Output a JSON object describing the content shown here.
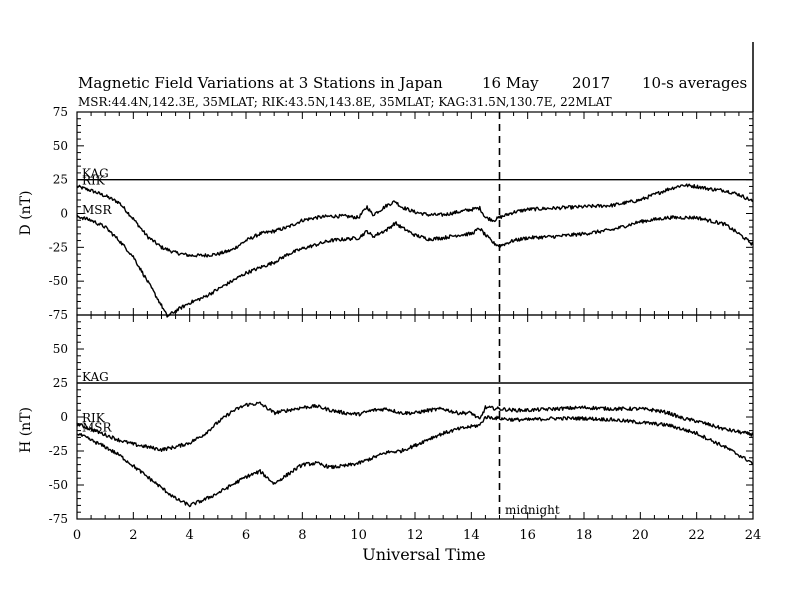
{
  "title": "Magnetic Field Variations at 3 Stations in Japan",
  "date": "16 May",
  "year": "2017",
  "averaging": "10-s averages",
  "stations_line": "MSR:44.4N,142.3E, 35MLAT;  RIK:43.5N,143.8E, 35MLAT;  KAG:31.5N,130.7E, 22MLAT",
  "chart_data": [
    {
      "type": "line",
      "ylabel": "D (nT)",
      "ylim": [
        -75,
        75
      ],
      "yticks": [
        "75",
        "50",
        "25",
        "0",
        "-25",
        "-50",
        "-75"
      ],
      "xlim": [
        0,
        24
      ],
      "series": [
        {
          "name": "KAG",
          "x": [
            0,
            24
          ],
          "y": [
            25,
            25
          ]
        },
        {
          "name": "RIK",
          "x": [
            0,
            0.5,
            1,
            1.5,
            2,
            2.5,
            3,
            3.5,
            4,
            4.5,
            5,
            5.5,
            6,
            6.5,
            7,
            7.5,
            8,
            8.5,
            9,
            9.5,
            10,
            10.3,
            10.5,
            10.8,
            11,
            11.3,
            11.5,
            12,
            12.5,
            13,
            13.5,
            14,
            14.3,
            14.5,
            14.8,
            15,
            15.5,
            16,
            17,
            18,
            19,
            20,
            20.5,
            21,
            21.5,
            22,
            22.5,
            23,
            23.5,
            24
          ],
          "y": [
            20,
            17,
            13,
            8,
            -4,
            -17,
            -25,
            -29,
            -31,
            -31,
            -30,
            -27,
            -20,
            -15,
            -13,
            -10,
            -5,
            -3,
            -2,
            -2,
            -3,
            5,
            -1,
            3,
            6,
            9,
            5,
            1,
            -1,
            -1,
            1,
            3,
            4,
            -3,
            -5,
            -3,
            1,
            3,
            4,
            5,
            6,
            10,
            14,
            18,
            21,
            20,
            18,
            17,
            14,
            9
          ]
        },
        {
          "name": "MSR",
          "x": [
            0,
            0.5,
            1,
            1.5,
            2,
            2.5,
            3,
            3.2,
            3.5,
            4,
            4.5,
            5,
            5.5,
            6,
            6.5,
            7,
            7.5,
            8,
            8.5,
            9,
            9.5,
            10,
            10.3,
            10.5,
            10.8,
            11,
            11.3,
            11.5,
            12,
            12.5,
            13,
            13.5,
            14,
            14.3,
            14.5,
            14.8,
            15,
            15.5,
            16,
            17,
            18,
            19,
            20,
            21,
            22,
            23,
            23.5,
            24
          ],
          "y": [
            -2,
            -5,
            -10,
            -20,
            -32,
            -50,
            -68,
            -76,
            -72,
            -66,
            -62,
            -56,
            -50,
            -44,
            -40,
            -36,
            -30,
            -26,
            -23,
            -20,
            -19,
            -18,
            -13,
            -17,
            -14,
            -12,
            -7,
            -10,
            -16,
            -19,
            -18,
            -16,
            -15,
            -11,
            -16,
            -22,
            -24,
            -20,
            -18,
            -17,
            -15,
            -12,
            -6,
            -3,
            -3,
            -8,
            -15,
            -23
          ]
        }
      ]
    },
    {
      "type": "line",
      "ylabel": "H (nT)",
      "ylim": [
        -75,
        75
      ],
      "yticks": [
        "50",
        "25",
        "0",
        "-25",
        "-50",
        "-75"
      ],
      "xlim": [
        0,
        24
      ],
      "xlabel": "Universal Time",
      "xticks": [
        "0",
        "2",
        "4",
        "6",
        "8",
        "10",
        "12",
        "14",
        "16",
        "18",
        "20",
        "22",
        "24"
      ],
      "annotation": "midnight",
      "annotation_x": 15,
      "series": [
        {
          "name": "KAG",
          "x": [
            0,
            24
          ],
          "y": [
            25,
            25
          ]
        },
        {
          "name": "RIK",
          "x": [
            0,
            0.5,
            1,
            1.5,
            2,
            2.5,
            3,
            3.5,
            4,
            4.5,
            5,
            5.5,
            6,
            6.5,
            7,
            7.5,
            8,
            8.5,
            9,
            9.5,
            10,
            10.5,
            11,
            11.5,
            12,
            12.5,
            13,
            13.5,
            14,
            14.3,
            14.5,
            15,
            15.5,
            16,
            17,
            18,
            19,
            20,
            20.5,
            21,
            21.5,
            22,
            22.5,
            23,
            23.5,
            24
          ],
          "y": [
            -5,
            -9,
            -13,
            -17,
            -20,
            -22,
            -24,
            -22,
            -19,
            -13,
            -4,
            4,
            9,
            10,
            3,
            5,
            7,
            8,
            5,
            3,
            2,
            5,
            6,
            3,
            3,
            5,
            6,
            3,
            3,
            -2,
            7,
            6,
            5,
            5,
            6,
            7,
            6,
            6,
            5,
            3,
            -1,
            -3,
            -6,
            -9,
            -11,
            -13
          ]
        },
        {
          "name": "MSR",
          "x": [
            0,
            0.5,
            1,
            1.5,
            2,
            2.5,
            3,
            3.5,
            4,
            4.5,
            5,
            5.5,
            6,
            6.5,
            7,
            7.5,
            8,
            8.5,
            9,
            9.5,
            10,
            10.5,
            11,
            11.5,
            12,
            12.5,
            13,
            13.5,
            14,
            14.3,
            14.5,
            15,
            15.5,
            16,
            17,
            18,
            19,
            20,
            21,
            21.5,
            22,
            22.5,
            23,
            23.5,
            24
          ],
          "y": [
            -12,
            -17,
            -22,
            -28,
            -36,
            -44,
            -52,
            -60,
            -65,
            -61,
            -56,
            -50,
            -44,
            -40,
            -49,
            -42,
            -35,
            -34,
            -37,
            -36,
            -34,
            -30,
            -26,
            -25,
            -21,
            -16,
            -12,
            -9,
            -7,
            -6,
            0,
            -1,
            -2,
            -2,
            -1,
            -1,
            -2,
            -4,
            -6,
            -9,
            -12,
            -17,
            -22,
            -28,
            -34
          ]
        }
      ]
    }
  ]
}
